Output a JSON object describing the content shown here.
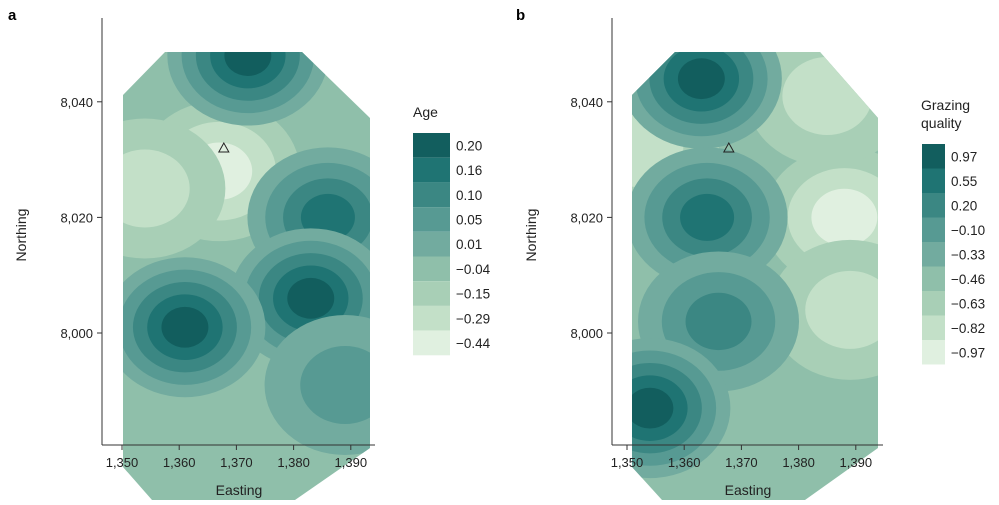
{
  "chart_data": [
    {
      "type": "heatmap",
      "panel_label": "a",
      "xlabel": "Easting",
      "ylabel": "Northing",
      "x_ticks": [
        "1,350",
        "1,360",
        "1,370",
        "1,380",
        "1,390"
      ],
      "x_tick_values": [
        1350,
        1360,
        1370,
        1380,
        1390
      ],
      "y_ticks": [
        "8,040",
        "8,020",
        "8,000"
      ],
      "y_tick_values": [
        8040,
        8020,
        8000
      ],
      "xlim": [
        1350,
        1394
      ],
      "ylim": [
        7985,
        8050
      ],
      "legend_title": [
        "Age"
      ],
      "legend_labels": [
        "0.20",
        "0.16",
        "0.10",
        "0.05",
        "0.01",
        "−0.04",
        "−0.15",
        "−0.29",
        "−0.44"
      ],
      "legend_colors": [
        "#125e5e",
        "#1f7473",
        "#3b8783",
        "#579a93",
        "#72ab9f",
        "#8fbfaa",
        "#a8cfb6",
        "#c3e0c8",
        "#e0f0e0"
      ],
      "marker": {
        "type": "triangle",
        "x": 1367.8,
        "y": 8032
      },
      "high_centers": [
        {
          "x": 1372,
          "y": 8048,
          "level": 0
        },
        {
          "x": 1386,
          "y": 8020,
          "level": 1
        },
        {
          "x": 1383,
          "y": 8006,
          "level": 0
        },
        {
          "x": 1361,
          "y": 8001,
          "level": 0
        },
        {
          "x": 1389,
          "y": 7991,
          "level": 3
        }
      ],
      "low_centers": [
        {
          "x": 1367,
          "y": 8028,
          "level": 8
        },
        {
          "x": 1354,
          "y": 8025,
          "level": 7
        }
      ]
    },
    {
      "type": "heatmap",
      "panel_label": "b",
      "xlabel": "Easting",
      "ylabel": "Northing",
      "x_ticks": [
        "1,350",
        "1,360",
        "1,370",
        "1,380",
        "1,390"
      ],
      "x_tick_values": [
        1350,
        1360,
        1370,
        1380,
        1390
      ],
      "y_ticks": [
        "8,040",
        "8,020",
        "8,000"
      ],
      "y_tick_values": [
        8040,
        8020,
        8000
      ],
      "xlim": [
        1350,
        1394
      ],
      "ylim": [
        7985,
        8050
      ],
      "legend_title": [
        "Grazing",
        "quality"
      ],
      "legend_labels": [
        "0.97",
        "0.55",
        "0.20",
        "−0.10",
        "−0.33",
        "−0.46",
        "−0.63",
        "−0.82",
        "−0.97"
      ],
      "legend_colors": [
        "#125e5e",
        "#1f7473",
        "#3b8783",
        "#579a93",
        "#72ab9f",
        "#8fbfaa",
        "#a8cfb6",
        "#c3e0c8",
        "#e0f0e0"
      ],
      "marker": {
        "type": "triangle",
        "x": 1367.8,
        "y": 8032
      },
      "high_centers": [
        {
          "x": 1363,
          "y": 8044,
          "level": 0
        },
        {
          "x": 1364,
          "y": 8020,
          "level": 1
        },
        {
          "x": 1366,
          "y": 8002,
          "level": 2
        },
        {
          "x": 1354,
          "y": 7987,
          "level": 0
        }
      ],
      "low_centers": [
        {
          "x": 1388,
          "y": 8020,
          "level": 8
        },
        {
          "x": 1389,
          "y": 8004,
          "level": 7
        },
        {
          "x": 1352,
          "y": 8032,
          "level": 7
        },
        {
          "x": 1385,
          "y": 8041,
          "level": 7
        }
      ]
    }
  ]
}
